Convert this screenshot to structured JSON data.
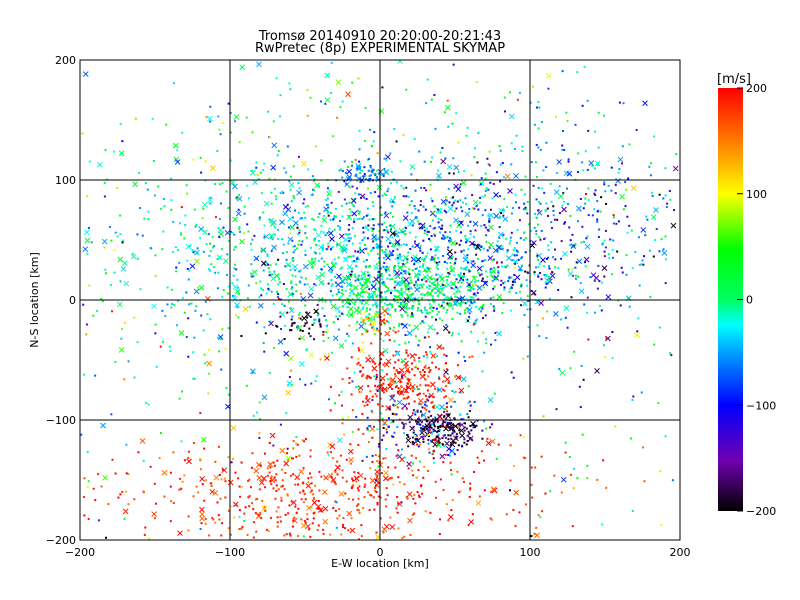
{
  "chart_data": {
    "type": "scatter",
    "title": "Tromsø 20140910 20:20:00-20:21:43",
    "subtitle": "RwPretec (8p) EXPERIMENTAL SKYMAP",
    "xlabel": "E-W location [km]",
    "ylabel": "N-S location [km]",
    "xlim": [
      -200,
      200
    ],
    "ylim": [
      -200,
      200
    ],
    "xticks": [
      "-200",
      "-100",
      "0",
      "100",
      "200"
    ],
    "yticks": [
      "-200",
      "-100",
      "0",
      "100",
      "200"
    ],
    "grid": true,
    "colorbar": {
      "label": "[m/s]",
      "range": [
        -200,
        200
      ],
      "ticks": [
        "200",
        "100",
        "0",
        "-100",
        "-200"
      ],
      "colors": [
        "#000000",
        "#8000c0",
        "#0000ff",
        "#00ffff",
        "#00ff00",
        "#ffff00",
        "#ff0000"
      ],
      "placement": "right"
    },
    "markers": [
      "dot",
      "x"
    ],
    "clusters": [
      {
        "x": 0,
        "y": 40,
        "sx": 65,
        "sy": 35,
        "v": -30,
        "vs": 35,
        "n": 900
      },
      {
        "x": 20,
        "y": 5,
        "sx": 30,
        "sy": 15,
        "v": 10,
        "vs": 25,
        "n": 400
      },
      {
        "x": 70,
        "y": 45,
        "sx": 60,
        "sy": 35,
        "v": -110,
        "vs": 55,
        "n": 450
      },
      {
        "x": -110,
        "y": 40,
        "sx": 60,
        "sy": 55,
        "v": 0,
        "vs": 40,
        "n": 250
      },
      {
        "x": 130,
        "y": 90,
        "sx": 50,
        "sy": 45,
        "v": -40,
        "vs": 40,
        "n": 200
      },
      {
        "x": -30,
        "y": 130,
        "sx": 90,
        "sy": 40,
        "v": 0,
        "vs": 70,
        "n": 150
      },
      {
        "x": -10,
        "y": 105,
        "sx": 8,
        "sy": 6,
        "v": -60,
        "vs": 20,
        "n": 50
      },
      {
        "x": 15,
        "y": -70,
        "sx": 18,
        "sy": 15,
        "v": 190,
        "vs": 20,
        "n": 250
      },
      {
        "x": 40,
        "y": -108,
        "sx": 12,
        "sy": 8,
        "v": -185,
        "vs": 20,
        "n": 200
      },
      {
        "x": 25,
        "y": -105,
        "sx": 20,
        "sy": 15,
        "v": -80,
        "vs": 60,
        "n": 100
      },
      {
        "x": -40,
        "y": -160,
        "sx": 70,
        "sy": 25,
        "v": 185,
        "vs": 25,
        "n": 600
      },
      {
        "x": 0,
        "y": -20,
        "sx": 8,
        "sy": 6,
        "v": 130,
        "vs": 40,
        "n": 40
      },
      {
        "x": -50,
        "y": -20,
        "sx": 10,
        "sy": 8,
        "v": -190,
        "vs": 15,
        "n": 40
      },
      {
        "x": 0,
        "y": -40,
        "sx": 120,
        "sy": 60,
        "v": 0,
        "vs": 90,
        "n": 300
      },
      {
        "x": 0,
        "y": 0,
        "sx": 180,
        "sy": 180,
        "v": 0,
        "vs": 100,
        "n": 250
      }
    ]
  }
}
